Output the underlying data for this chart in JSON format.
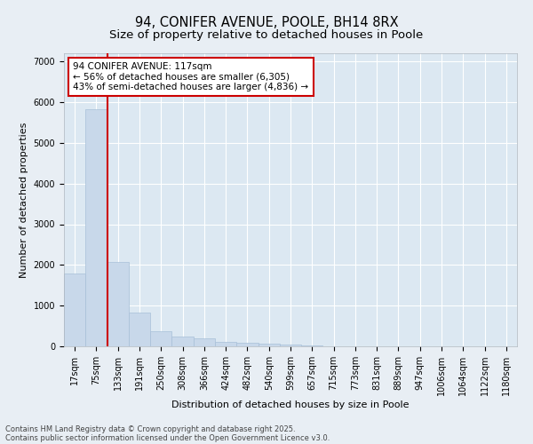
{
  "title1": "94, CONIFER AVENUE, POOLE, BH14 8RX",
  "title2": "Size of property relative to detached houses in Poole",
  "xlabel": "Distribution of detached houses by size in Poole",
  "ylabel": "Number of detached properties",
  "categories": [
    "17sqm",
    "75sqm",
    "133sqm",
    "191sqm",
    "250sqm",
    "308sqm",
    "366sqm",
    "424sqm",
    "482sqm",
    "540sqm",
    "599sqm",
    "657sqm",
    "715sqm",
    "773sqm",
    "831sqm",
    "889sqm",
    "947sqm",
    "1006sqm",
    "1064sqm",
    "1122sqm",
    "1180sqm"
  ],
  "values": [
    1780,
    5820,
    2080,
    830,
    375,
    250,
    200,
    110,
    90,
    55,
    35,
    20,
    10,
    4,
    2,
    1,
    1,
    0,
    0,
    0,
    0
  ],
  "bar_color": "#c8d8ea",
  "bar_edgecolor": "#a8c0d8",
  "vline_color": "#cc0000",
  "vline_pos": 1.5,
  "annotation_text": "94 CONIFER AVENUE: 117sqm\n← 56% of detached houses are smaller (6,305)\n43% of semi-detached houses are larger (4,836) →",
  "annotation_box_facecolor": "#ffffff",
  "annotation_box_edgecolor": "#cc0000",
  "ylim": [
    0,
    7200
  ],
  "yticks": [
    0,
    1000,
    2000,
    3000,
    4000,
    5000,
    6000,
    7000
  ],
  "fig_bg_color": "#e8eef4",
  "plot_bg_color": "#dce8f2",
  "footer1": "Contains HM Land Registry data © Crown copyright and database right 2025.",
  "footer2": "Contains public sector information licensed under the Open Government Licence v3.0.",
  "title1_fontsize": 10.5,
  "title2_fontsize": 9.5,
  "label_fontsize": 8,
  "tick_fontsize": 7,
  "annot_fontsize": 7.5,
  "footer_fontsize": 6
}
